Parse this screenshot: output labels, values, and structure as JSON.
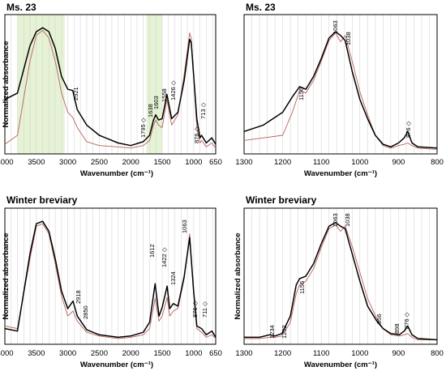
{
  "chart_data": [
    {
      "type": "line",
      "title": "Ms. 23",
      "xlabel": "Wavenumber (cm⁻¹)",
      "ylabel": "Normalized absorbance",
      "xlim": [
        4000,
        650
      ],
      "x_reversed": true,
      "xticks": [
        "4000",
        "3500",
        "3000",
        "2500",
        "2000",
        "1500",
        "1000",
        "650"
      ],
      "grid": "vertical",
      "shaded_regions": [
        [
          3800,
          3050
        ],
        [
          1750,
          1500
        ]
      ],
      "series": [
        {
          "color": "#000000",
          "x": [
            4000,
            3800,
            3600,
            3500,
            3400,
            3300,
            3200,
            3100,
            3000,
            2921,
            2850,
            2700,
            2500,
            2200,
            2000,
            1800,
            1700,
            1638,
            1603,
            1558,
            1500,
            1426,
            1350,
            1250,
            1150,
            1063,
            1038,
            950,
            900,
            876,
            800,
            713,
            650
          ],
          "y": [
            0.4,
            0.45,
            0.82,
            0.93,
            0.96,
            0.93,
            0.8,
            0.58,
            0.48,
            0.47,
            0.32,
            0.2,
            0.12,
            0.06,
            0.04,
            0.07,
            0.12,
            0.24,
            0.28,
            0.24,
            0.25,
            0.44,
            0.25,
            0.3,
            0.55,
            0.87,
            0.84,
            0.25,
            0.1,
            0.12,
            0.06,
            0.1,
            0.05
          ]
        },
        {
          "color": "#b5645c",
          "x": [
            4000,
            3800,
            3600,
            3500,
            3400,
            3300,
            3200,
            3100,
            3000,
            2921,
            2850,
            2700,
            2500,
            2200,
            2000,
            1800,
            1700,
            1638,
            1603,
            1558,
            1500,
            1426,
            1350,
            1250,
            1150,
            1063,
            1038,
            950,
            900,
            876,
            800,
            713,
            650
          ],
          "y": [
            0.05,
            0.12,
            0.7,
            0.9,
            0.94,
            0.88,
            0.7,
            0.45,
            0.3,
            0.26,
            0.18,
            0.07,
            0.04,
            0.03,
            0.02,
            0.04,
            0.08,
            0.2,
            0.24,
            0.2,
            0.18,
            0.4,
            0.2,
            0.28,
            0.6,
            0.92,
            0.88,
            0.18,
            0.06,
            0.08,
            0.03,
            0.06,
            0.02
          ]
        }
      ],
      "annotations": [
        "2921",
        "1795 ◇",
        "1638",
        "1603",
        "1558",
        "1426 ◇",
        "876 ◇",
        "713 ◇"
      ]
    },
    {
      "type": "line",
      "title": "Ms. 23",
      "xlabel": "Wavenumber (cm⁻¹)",
      "ylabel": "",
      "xlim": [
        1300,
        800
      ],
      "x_reversed": true,
      "xticks": [
        "1300",
        "1200",
        "1100",
        "1000",
        "900",
        "800"
      ],
      "grid": "vertical",
      "series": [
        {
          "color": "#000000",
          "x": [
            1300,
            1250,
            1200,
            1175,
            1156,
            1140,
            1120,
            1100,
            1080,
            1063,
            1050,
            1038,
            1020,
            1000,
            980,
            960,
            940,
            920,
            900,
            885,
            876,
            865,
            850,
            800
          ],
          "y": [
            0.15,
            0.2,
            0.3,
            0.42,
            0.5,
            0.48,
            0.58,
            0.72,
            0.88,
            0.93,
            0.9,
            0.86,
            0.62,
            0.4,
            0.25,
            0.12,
            0.05,
            0.03,
            0.06,
            0.1,
            0.15,
            0.06,
            0.03,
            0.02
          ]
        },
        {
          "color": "#b5645c",
          "x": [
            1300,
            1250,
            1200,
            1175,
            1156,
            1140,
            1120,
            1100,
            1080,
            1063,
            1050,
            1038,
            1020,
            1000,
            980,
            960,
            940,
            920,
            900,
            885,
            876,
            865,
            850,
            800
          ],
          "y": [
            0.08,
            0.1,
            0.12,
            0.3,
            0.47,
            0.45,
            0.55,
            0.7,
            0.86,
            0.92,
            0.85,
            0.9,
            0.7,
            0.46,
            0.28,
            0.12,
            0.04,
            0.02,
            0.04,
            0.05,
            0.06,
            0.04,
            0.02,
            0.01
          ]
        }
      ],
      "annotations": [
        "1156",
        "1063",
        "1038",
        "876 ◇"
      ]
    },
    {
      "type": "line",
      "title": "Winter breviary",
      "xlabel": "Wavenumber (cm⁻¹)",
      "ylabel": "Normalized absorbance",
      "xlim": [
        4000,
        650
      ],
      "x_reversed": true,
      "xticks": [
        "4000",
        "3500",
        "3000",
        "2500",
        "2000",
        "1500",
        "1000",
        "650"
      ],
      "grid": "vertical",
      "series": [
        {
          "color": "#000000",
          "x": [
            4000,
            3800,
            3600,
            3500,
            3400,
            3300,
            3200,
            3100,
            3000,
            2918,
            2850,
            2700,
            2500,
            2200,
            2000,
            1800,
            1700,
            1612,
            1550,
            1500,
            1422,
            1380,
            1324,
            1250,
            1150,
            1063,
            1000,
            950,
            876,
            800,
            711,
            650
          ],
          "y": [
            0.1,
            0.08,
            0.7,
            0.94,
            0.96,
            0.88,
            0.66,
            0.4,
            0.26,
            0.32,
            0.2,
            0.09,
            0.05,
            0.03,
            0.04,
            0.07,
            0.15,
            0.46,
            0.2,
            0.27,
            0.44,
            0.26,
            0.3,
            0.28,
            0.52,
            0.83,
            0.4,
            0.12,
            0.1,
            0.05,
            0.08,
            0.03
          ]
        },
        {
          "color": "#b5645c",
          "x": [
            4000,
            3800,
            3600,
            3500,
            3400,
            3300,
            3200,
            3100,
            3000,
            2918,
            2850,
            2700,
            2500,
            2200,
            2000,
            1800,
            1700,
            1612,
            1550,
            1500,
            1422,
            1380,
            1324,
            1250,
            1150,
            1063,
            1000,
            950,
            876,
            800,
            711,
            650
          ],
          "y": [
            0.12,
            0.1,
            0.66,
            0.92,
            0.94,
            0.86,
            0.62,
            0.36,
            0.2,
            0.24,
            0.16,
            0.07,
            0.04,
            0.02,
            0.03,
            0.05,
            0.1,
            0.34,
            0.16,
            0.2,
            0.35,
            0.2,
            0.24,
            0.26,
            0.5,
            0.86,
            0.38,
            0.1,
            0.07,
            0.03,
            0.05,
            0.02
          ]
        }
      ],
      "annotations": [
        "2918",
        "2850",
        "1612",
        "1422 ◇",
        "1324",
        "1063",
        "876 ◇",
        "711 ◇"
      ]
    },
    {
      "type": "line",
      "title": "Winter breviary",
      "xlabel": "Wavenumber (cm⁻¹)",
      "ylabel": "Normalized absorbance",
      "xlim": [
        1300,
        800
      ],
      "x_reversed": true,
      "xticks": [
        "1300",
        "1200",
        "1100",
        "1000",
        "900",
        "800"
      ],
      "grid": "vertical",
      "series": [
        {
          "color": "#000000",
          "x": [
            1300,
            1260,
            1234,
            1220,
            1202,
            1180,
            1165,
            1156,
            1140,
            1120,
            1100,
            1080,
            1063,
            1050,
            1038,
            1020,
            1000,
            980,
            956,
            940,
            920,
            898,
            885,
            876,
            865,
            850,
            800
          ],
          "y": [
            0.03,
            0.03,
            0.05,
            0.04,
            0.06,
            0.2,
            0.45,
            0.5,
            0.52,
            0.62,
            0.78,
            0.92,
            0.95,
            0.92,
            0.9,
            0.7,
            0.48,
            0.28,
            0.16,
            0.1,
            0.06,
            0.05,
            0.08,
            0.12,
            0.05,
            0.02,
            0.01
          ]
        },
        {
          "color": "#b5645c",
          "x": [
            1300,
            1260,
            1234,
            1220,
            1202,
            1180,
            1165,
            1156,
            1140,
            1120,
            1100,
            1080,
            1063,
            1050,
            1038,
            1020,
            1000,
            980,
            956,
            940,
            920,
            898,
            885,
            876,
            865,
            850,
            800
          ],
          "y": [
            0.02,
            0.02,
            0.03,
            0.03,
            0.04,
            0.15,
            0.38,
            0.45,
            0.48,
            0.58,
            0.75,
            0.9,
            0.93,
            0.88,
            0.92,
            0.76,
            0.55,
            0.34,
            0.18,
            0.1,
            0.05,
            0.04,
            0.05,
            0.06,
            0.03,
            0.01,
            0.01
          ]
        }
      ],
      "annotations": [
        "1234",
        "1202",
        "1156",
        "1063",
        "1038",
        "956",
        "898",
        "876 ◇"
      ]
    }
  ]
}
